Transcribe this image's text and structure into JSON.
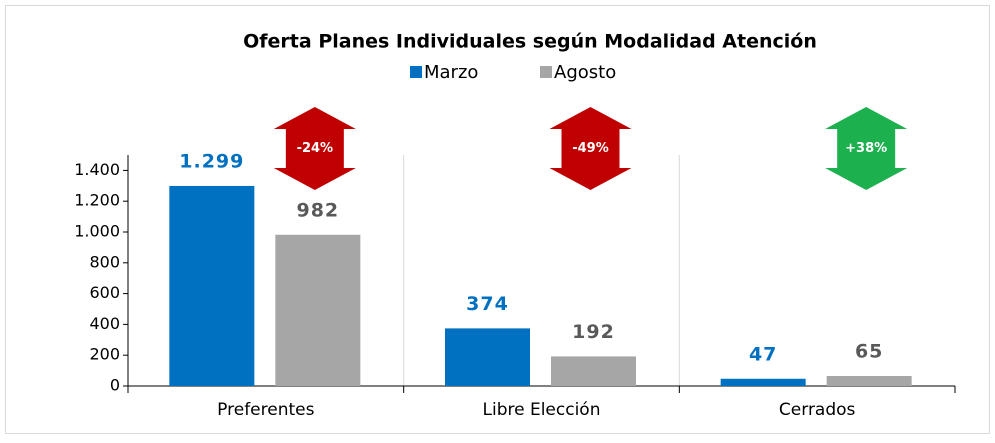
{
  "chart_data": {
    "type": "bar",
    "title": "Oferta Planes Individuales según Modalidad Atención",
    "categories": [
      "Preferentes",
      "Libre Elección",
      "Cerrados"
    ],
    "series": [
      {
        "name": "Marzo",
        "color": "#0070c0",
        "values": [
          1299,
          374,
          47
        ],
        "value_labels": [
          "1.299",
          "374",
          "47"
        ]
      },
      {
        "name": "Agosto",
        "color": "#a6a6a6",
        "values": [
          982,
          192,
          65
        ]
      }
    ],
    "annotations": [
      {
        "text": "-24%",
        "color": "#c00000"
      },
      {
        "text": "-49%",
        "color": "#c00000"
      },
      {
        "text": "+38%",
        "color": "#1db04f"
      }
    ],
    "ylim": [
      0,
      1500
    ],
    "yticks": [
      0,
      200,
      400,
      600,
      800,
      {
        "value": 1000,
        "label": "1.000"
      },
      {
        "value": 1200,
        "label": "1.200"
      },
      {
        "value": 1400,
        "label": "1.400"
      }
    ],
    "legend": "top",
    "grid": true
  }
}
